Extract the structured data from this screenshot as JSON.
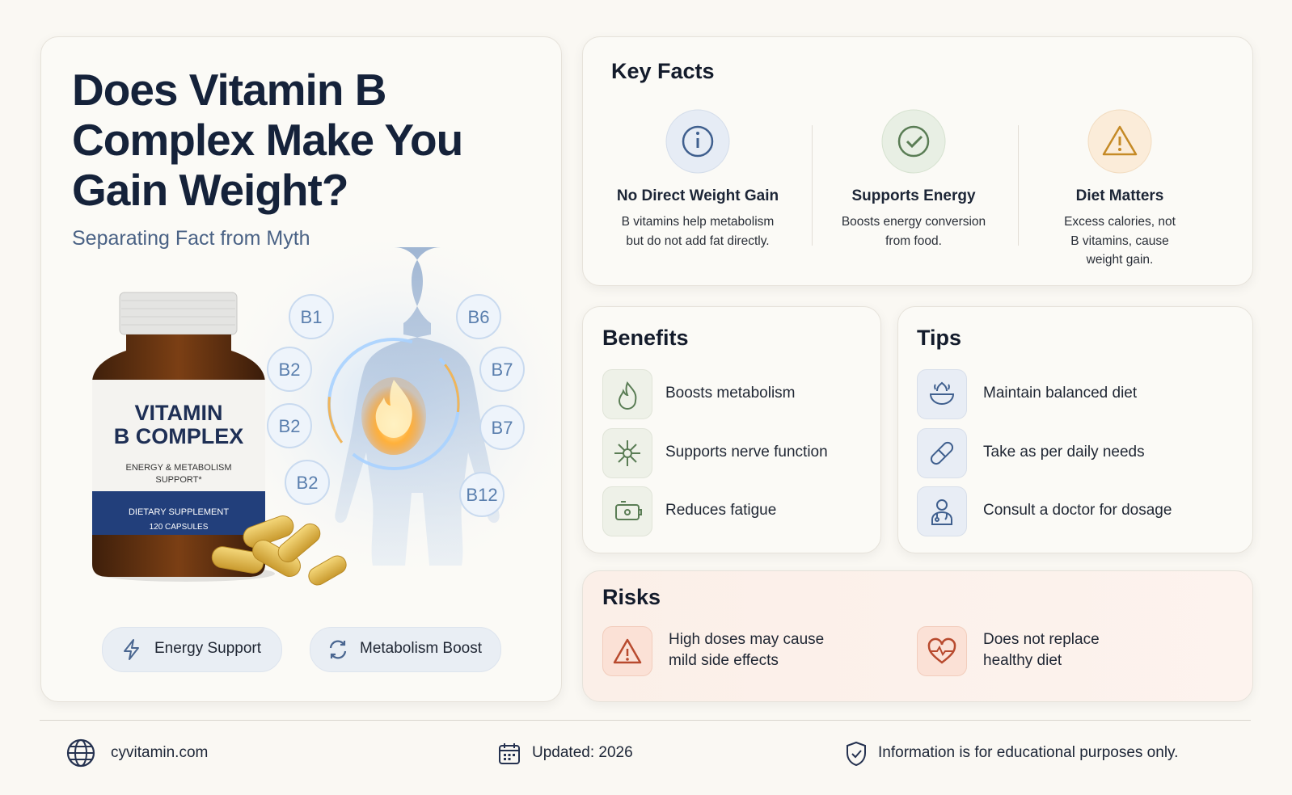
{
  "header": {
    "title_lines": [
      "Does Vitamin B",
      "Complex Make You",
      "Gain Weight?"
    ],
    "subtitle": "Separating Fact from Myth"
  },
  "illustration": {
    "bottle": {
      "brand_lines": [
        "VITAMIN",
        "B COMPLEX"
      ],
      "tagline_lines": [
        "ENERGY & METABOLISM",
        "SUPPORT*"
      ],
      "band_lines": [
        "DIETARY SUPPLEMENT",
        "120 CAPSULES"
      ]
    },
    "vitamins": [
      "B1",
      "B2",
      "B2",
      "B2",
      "B6",
      "B7",
      "B7",
      "B12"
    ]
  },
  "badges": [
    "Energy Support",
    "Metabolism Boost"
  ],
  "key_facts": {
    "title": "Key Facts",
    "items": [
      {
        "title": "No Direct Weight Gain",
        "text_lines": [
          "B vitamins help metabolism",
          "but do not add fat directly."
        ]
      },
      {
        "title": "Supports Energy",
        "text_lines": [
          "Boosts energy conversion",
          "from food."
        ]
      },
      {
        "title": "Diet Matters",
        "text_lines": [
          "Excess calories, not",
          "B vitamins, cause",
          "weight gain."
        ]
      }
    ]
  },
  "benefits": {
    "title": "Benefits",
    "items": [
      "Boosts metabolism",
      "Supports nerve function",
      "Reduces fatigue"
    ]
  },
  "tips": {
    "title": "Tips",
    "items": [
      "Maintain balanced diet",
      "Take as per daily needs",
      "Consult a doctor for dosage"
    ]
  },
  "risks": {
    "title": "Risks",
    "items": [
      [
        "High doses may cause",
        "mild side effects"
      ],
      [
        "Does not replace",
        "healthy diet"
      ]
    ]
  },
  "footer": {
    "website": "cyvitamin.com",
    "updated": "Updated: 2026",
    "disclaimer": "Information is for educational purposes only."
  }
}
